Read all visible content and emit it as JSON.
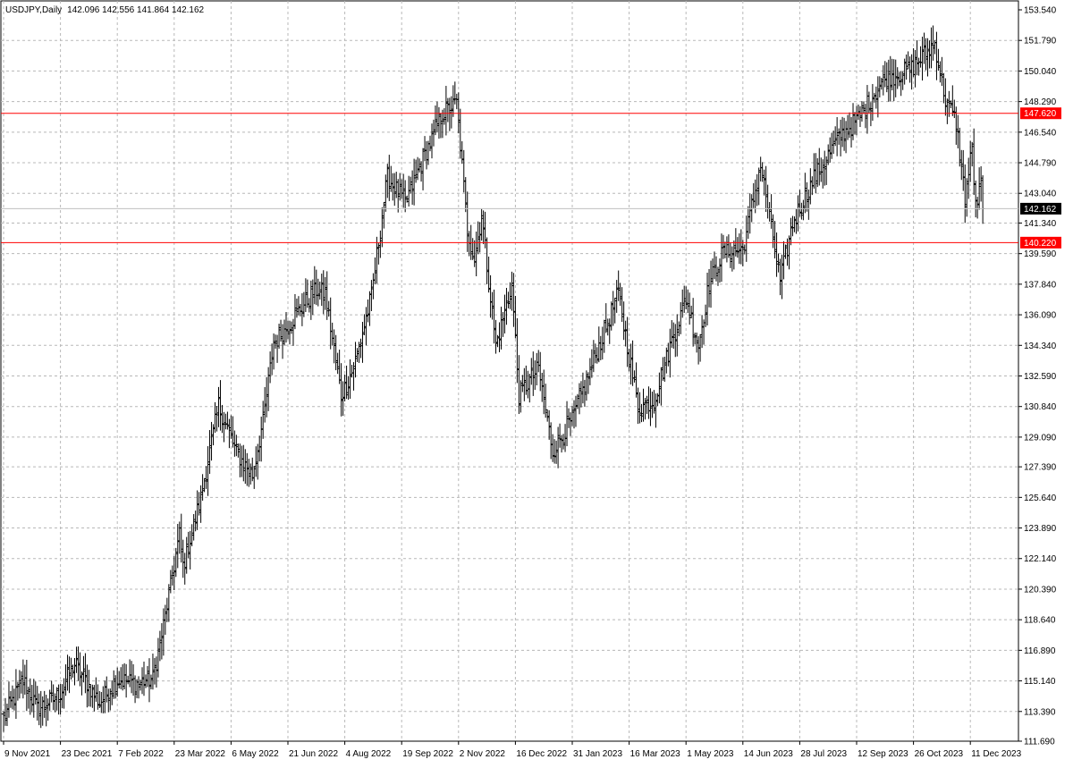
{
  "chart_header": {
    "symbol": "USDJPY,Daily",
    "ohlc_values": "142.096 142.556 141.864 142.162"
  },
  "chart_data": {
    "type": "bar",
    "subtype": "ohlc",
    "title": "USDJPY,Daily",
    "ylim": [
      111.69,
      153.54
    ],
    "y_ticks": [
      "153.540",
      "151.790",
      "150.040",
      "148.290",
      "146.540",
      "144.790",
      "143.040",
      "141.340",
      "139.590",
      "137.840",
      "136.090",
      "134.340",
      "132.590",
      "130.840",
      "129.090",
      "127.390",
      "125.640",
      "123.890",
      "122.140",
      "120.390",
      "118.640",
      "116.890",
      "115.140",
      "113.390",
      "111.690"
    ],
    "x_ticks": [
      "9 Nov 2021",
      "23 Dec 2021",
      "7 Feb 2022",
      "23 Mar 2022",
      "6 May 2022",
      "21 Jun 2022",
      "4 Aug 2022",
      "19 Sep 2022",
      "2 Nov 2022",
      "16 Dec 2022",
      "31 Jan 2023",
      "16 Mar 2023",
      "1 May 2023",
      "14 Jun 2023",
      "28 Jul 2023",
      "12 Sep 2023",
      "26 Oct 2023",
      "11 Dec 2023"
    ],
    "grid": true,
    "current_price": "142.162",
    "horizontal_lines": [
      {
        "value": 147.62,
        "label": "147.620",
        "color": "#ff0000"
      },
      {
        "value": 140.22,
        "label": "140.220",
        "color": "#ff0000"
      }
    ],
    "close_anchors": [
      {
        "date": "2021-11-09",
        "close": 113.0
      },
      {
        "date": "2021-11-25",
        "close": 115.2
      },
      {
        "date": "2021-12-06",
        "close": 113.5
      },
      {
        "date": "2021-12-23",
        "close": 114.3
      },
      {
        "date": "2022-01-04",
        "close": 116.1
      },
      {
        "date": "2022-01-24",
        "close": 113.9
      },
      {
        "date": "2022-02-07",
        "close": 115.2
      },
      {
        "date": "2022-02-24",
        "close": 115.0
      },
      {
        "date": "2022-03-07",
        "close": 115.3
      },
      {
        "date": "2022-03-15",
        "close": 118.3
      },
      {
        "date": "2022-03-28",
        "close": 123.5
      },
      {
        "date": "2022-03-31",
        "close": 121.7
      },
      {
        "date": "2022-04-13",
        "close": 125.6
      },
      {
        "date": "2022-04-28",
        "close": 130.9
      },
      {
        "date": "2022-05-12",
        "close": 128.2
      },
      {
        "date": "2022-05-24",
        "close": 126.9
      },
      {
        "date": "2022-06-01",
        "close": 130.0
      },
      {
        "date": "2022-06-10",
        "close": 134.5
      },
      {
        "date": "2022-06-17",
        "close": 135.0
      },
      {
        "date": "2022-06-28",
        "close": 136.2
      },
      {
        "date": "2022-07-13",
        "close": 137.5
      },
      {
        "date": "2022-07-21",
        "close": 137.3
      },
      {
        "date": "2022-08-02",
        "close": 131.5
      },
      {
        "date": "2022-08-10",
        "close": 132.8
      },
      {
        "date": "2022-08-16",
        "close": 134.2
      },
      {
        "date": "2022-08-26",
        "close": 137.2
      },
      {
        "date": "2022-09-07",
        "close": 144.0
      },
      {
        "date": "2022-09-22",
        "close": 142.5
      },
      {
        "date": "2022-10-06",
        "close": 145.0
      },
      {
        "date": "2022-10-21",
        "close": 147.6
      },
      {
        "date": "2022-11-01",
        "close": 148.2
      },
      {
        "date": "2022-11-10",
        "close": 141.0
      },
      {
        "date": "2022-11-15",
        "close": 139.3
      },
      {
        "date": "2022-11-21",
        "close": 141.8
      },
      {
        "date": "2022-12-02",
        "close": 134.3
      },
      {
        "date": "2022-12-15",
        "close": 137.8
      },
      {
        "date": "2022-12-20",
        "close": 131.5
      },
      {
        "date": "2023-01-05",
        "close": 133.0
      },
      {
        "date": "2023-01-16",
        "close": 128.3
      },
      {
        "date": "2023-01-31",
        "close": 130.1
      },
      {
        "date": "2023-02-14",
        "close": 132.9
      },
      {
        "date": "2023-03-08",
        "close": 137.3
      },
      {
        "date": "2023-03-24",
        "close": 130.8
      },
      {
        "date": "2023-04-05",
        "close": 131.2
      },
      {
        "date": "2023-04-19",
        "close": 134.6
      },
      {
        "date": "2023-05-01",
        "close": 137.0
      },
      {
        "date": "2023-05-10",
        "close": 134.3
      },
      {
        "date": "2023-05-19",
        "close": 137.9
      },
      {
        "date": "2023-05-30",
        "close": 139.7
      },
      {
        "date": "2023-06-14",
        "close": 139.8
      },
      {
        "date": "2023-06-29",
        "close": 144.7
      },
      {
        "date": "2023-07-14",
        "close": 138.0
      },
      {
        "date": "2023-07-24",
        "close": 141.3
      },
      {
        "date": "2023-08-10",
        "close": 143.9
      },
      {
        "date": "2023-08-29",
        "close": 146.2
      },
      {
        "date": "2023-09-12",
        "close": 147.2
      },
      {
        "date": "2023-10-03",
        "close": 149.5
      },
      {
        "date": "2023-10-26",
        "close": 150.2
      },
      {
        "date": "2023-11-13",
        "close": 151.6
      },
      {
        "date": "2023-11-21",
        "close": 148.4
      },
      {
        "date": "2023-11-30",
        "close": 147.1
      },
      {
        "date": "2023-12-07",
        "close": 142.8
      },
      {
        "date": "2023-12-12",
        "close": 145.6
      },
      {
        "date": "2023-12-15",
        "close": 142.2
      },
      {
        "date": "2023-12-19",
        "close": 143.6
      },
      {
        "date": "2023-12-20",
        "close": 142.162
      }
    ]
  }
}
